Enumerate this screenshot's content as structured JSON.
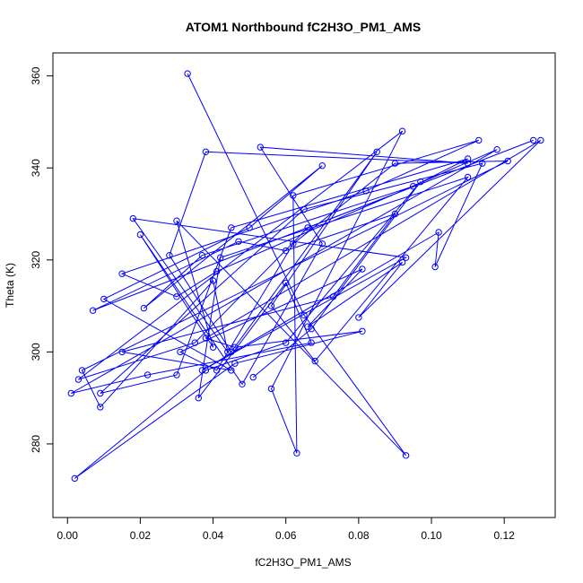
{
  "chart_data": {
    "type": "line",
    "title": "ATOM1 Northbound fC2H3O_PM1_AMS",
    "xlabel": "fC2H3O_PM1_AMS",
    "ylabel": "Theta (K)",
    "xlim": [
      -0.004,
      0.134
    ],
    "ylim": [
      264,
      365
    ],
    "xticks": [
      0.0,
      0.02,
      0.04,
      0.06,
      0.08,
      0.1,
      0.12
    ],
    "xtick_labels": [
      "0.00",
      "0.02",
      "0.04",
      "0.06",
      "0.08",
      "0.10",
      "0.12"
    ],
    "yticks": [
      280,
      300,
      320,
      340,
      360
    ],
    "ytick_labels": [
      "280",
      "300",
      "320",
      "340",
      "360"
    ],
    "grid": false,
    "markers": "open-circle",
    "line_color": "#0000ff",
    "series": [
      {
        "x": [
          0.033,
          0.065,
          0.093,
          0.03,
          0.04,
          0.02,
          0.048,
          0.07,
          0.053,
          0.11,
          0.038,
          0.028,
          0.045,
          0.085,
          0.056,
          0.068,
          0.11,
          0.042,
          0.036,
          0.06,
          0.067,
          0.022,
          0.001,
          0.118,
          0.041,
          0.03,
          0.015,
          0.082,
          0.113,
          0.062,
          0.063,
          0.056,
          0.092,
          0.003,
          0.035,
          0.066,
          0.128,
          0.007,
          0.047,
          0.06,
          0.09,
          0.073,
          0.015,
          0.045,
          0.01,
          0.05,
          0.07,
          0.021,
          0.037,
          0.095,
          0.11,
          0.045,
          0.03,
          0.009,
          0.065,
          0.114,
          0.101,
          0.102,
          0.037,
          0.093,
          0.018,
          0.044,
          0.04,
          0.009,
          0.004,
          0.121,
          0.09,
          0.062,
          0.041,
          0.031,
          0.081,
          0.066,
          0.092,
          0.08,
          0.13,
          0.038,
          0.046,
          0.081,
          0.046,
          0.002,
          0.038,
          0.06,
          0.097,
          0.067,
          0.051
        ],
        "y": [
          360.5,
          308.0,
          277.5,
          328.5,
          301.0,
          325.5,
          293.0,
          323.5,
          344.5,
          341.0,
          343.5,
          321.0,
          300.0,
          343.5,
          310.0,
          298.0,
          338.0,
          320.5,
          290.0,
          315.0,
          302.0,
          295.0,
          291.0,
          344.0,
          317.5,
          312.0,
          317.0,
          335.0,
          346.0,
          334.0,
          278.0,
          292.0,
          348.0,
          294.0,
          302.0,
          327.0,
          346.0,
          309.0,
          324.0,
          322.0,
          330.0,
          312.0,
          300.0,
          296.0,
          311.5,
          327.0,
          340.5,
          309.5,
          321.0,
          336.0,
          342.0,
          327.0,
          295.0,
          291.0,
          331.0,
          341.0,
          318.5,
          326.0,
          296.0,
          320.5,
          329.0,
          300.0,
          315.5,
          288.0,
          296.0,
          341.5,
          341.0,
          323.5,
          296.0,
          300.0,
          318.0,
          305.5,
          319.5,
          307.5,
          346.0,
          303.0,
          301.0,
          304.5,
          297.5,
          272.5,
          296.0,
          302.0,
          337.0,
          305.0,
          294.5
        ]
      }
    ]
  }
}
